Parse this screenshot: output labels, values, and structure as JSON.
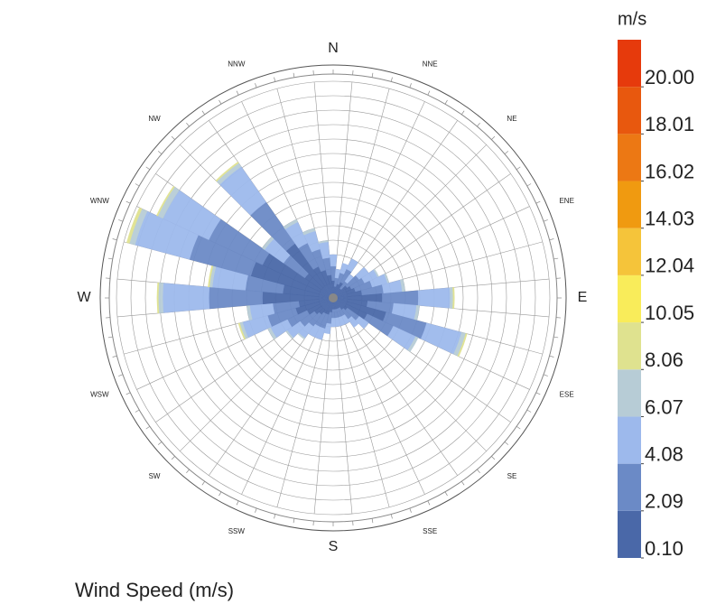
{
  "chart_data": {
    "type": "windrose",
    "title": "Wind Speed (m/s)",
    "directions": [
      "N",
      "NNE",
      "NE",
      "ENE",
      "E",
      "ESE",
      "SE",
      "SSE",
      "S",
      "SSW",
      "SW",
      "WSW",
      "W",
      "WNW",
      "NW",
      "NNW"
    ],
    "x": [
      0,
      10,
      20,
      30,
      40,
      50,
      60,
      70,
      80,
      90,
      100,
      110,
      120,
      130,
      140,
      150,
      160,
      170,
      180,
      190,
      200,
      210,
      220,
      230,
      240,
      250,
      260,
      270,
      280,
      290,
      300,
      310,
      320,
      330,
      340,
      350
    ],
    "series": [
      {
        "color": "#4a68a8",
        "values": [
          1.2,
          0.8,
          1,
          1.2,
          0.8,
          1.2,
          1.4,
          1.6,
          2,
          3.4,
          2.4,
          3.8,
          2.6,
          1.2,
          1,
          0.8,
          0.8,
          0.8,
          0.8,
          1,
          1.2,
          1.2,
          1.4,
          1.6,
          2,
          2.7,
          2.4,
          4.9,
          3.5,
          5.9,
          5.4,
          2.4,
          4.6,
          2.4,
          2,
          1.6
        ]
      },
      {
        "color": "#6b8ac6",
        "values": [
          1,
          0.6,
          0.8,
          1,
          0.6,
          1,
          1,
          1.2,
          1.5,
          2.5,
          1.8,
          2.9,
          2,
          1,
          0.8,
          0.6,
          0.6,
          0.6,
          0.6,
          0.8,
          1,
          1,
          1,
          1.2,
          1.5,
          2,
          1.8,
          3.7,
          2.6,
          4.4,
          4.1,
          1.8,
          3.5,
          1.8,
          1.5,
          1.2
        ]
      },
      {
        "color": "#9db9ec",
        "values": [
          0.8,
          0.6,
          0.7,
          0.8,
          0.6,
          0.8,
          1,
          1.1,
          1.3,
          2.2,
          1.6,
          2.5,
          1.7,
          0.8,
          0.7,
          0.6,
          0.6,
          0.6,
          0.6,
          0.7,
          0.8,
          0.8,
          1,
          1.1,
          1.3,
          1.8,
          1.6,
          3.2,
          2.3,
          3.9,
          3.5,
          1.6,
          3,
          1.6,
          1.3,
          1.1
        ]
      },
      {
        "color": "#b7ccd6",
        "values": [
          0,
          0,
          0,
          0,
          0,
          0,
          0.1,
          0.1,
          0.2,
          0.2,
          0.2,
          0.3,
          0.2,
          0,
          0,
          0,
          0,
          0,
          0,
          0,
          0,
          0,
          0.1,
          0.1,
          0.2,
          0.2,
          0.2,
          0.3,
          0.2,
          0.4,
          0.4,
          0.2,
          0.3,
          0.2,
          0.2,
          0.1
        ]
      },
      {
        "color": "#dfe28f",
        "values": [
          0,
          0,
          0,
          0,
          0,
          0,
          0,
          0,
          0,
          0.1,
          0,
          0.1,
          0,
          0,
          0,
          0,
          0,
          0,
          0,
          0,
          0,
          0,
          0,
          0,
          0,
          0.1,
          0,
          0.1,
          0.1,
          0.2,
          0.1,
          0,
          0.1,
          0,
          0,
          0
        ]
      }
    ],
    "rlim": [
      0,
      15
    ],
    "rticks": [
      1,
      2,
      3,
      4,
      5,
      6,
      7,
      8,
      9,
      10,
      11,
      12,
      13,
      14,
      15
    ],
    "grid": true,
    "colorbar": {
      "title": "m/s",
      "clim": [
        0.1,
        21.99
      ],
      "colors": [
        "#4a68a8",
        "#6b8ac6",
        "#9db9ec",
        "#b7ccd6",
        "#dfe28f",
        "#f9ec5a",
        "#f5c43a",
        "#f09a10",
        "#ec7814",
        "#e8580e",
        "#e63a0c"
      ],
      "ticks": [
        {
          "value": 0.1,
          "label": "0.10"
        },
        2.09,
        4.08,
        6.07,
        8.06,
        10.05,
        12.04,
        14.03,
        16.02,
        18.01,
        {
          "value": 20,
          "label": "20.00"
        }
      ]
    }
  }
}
